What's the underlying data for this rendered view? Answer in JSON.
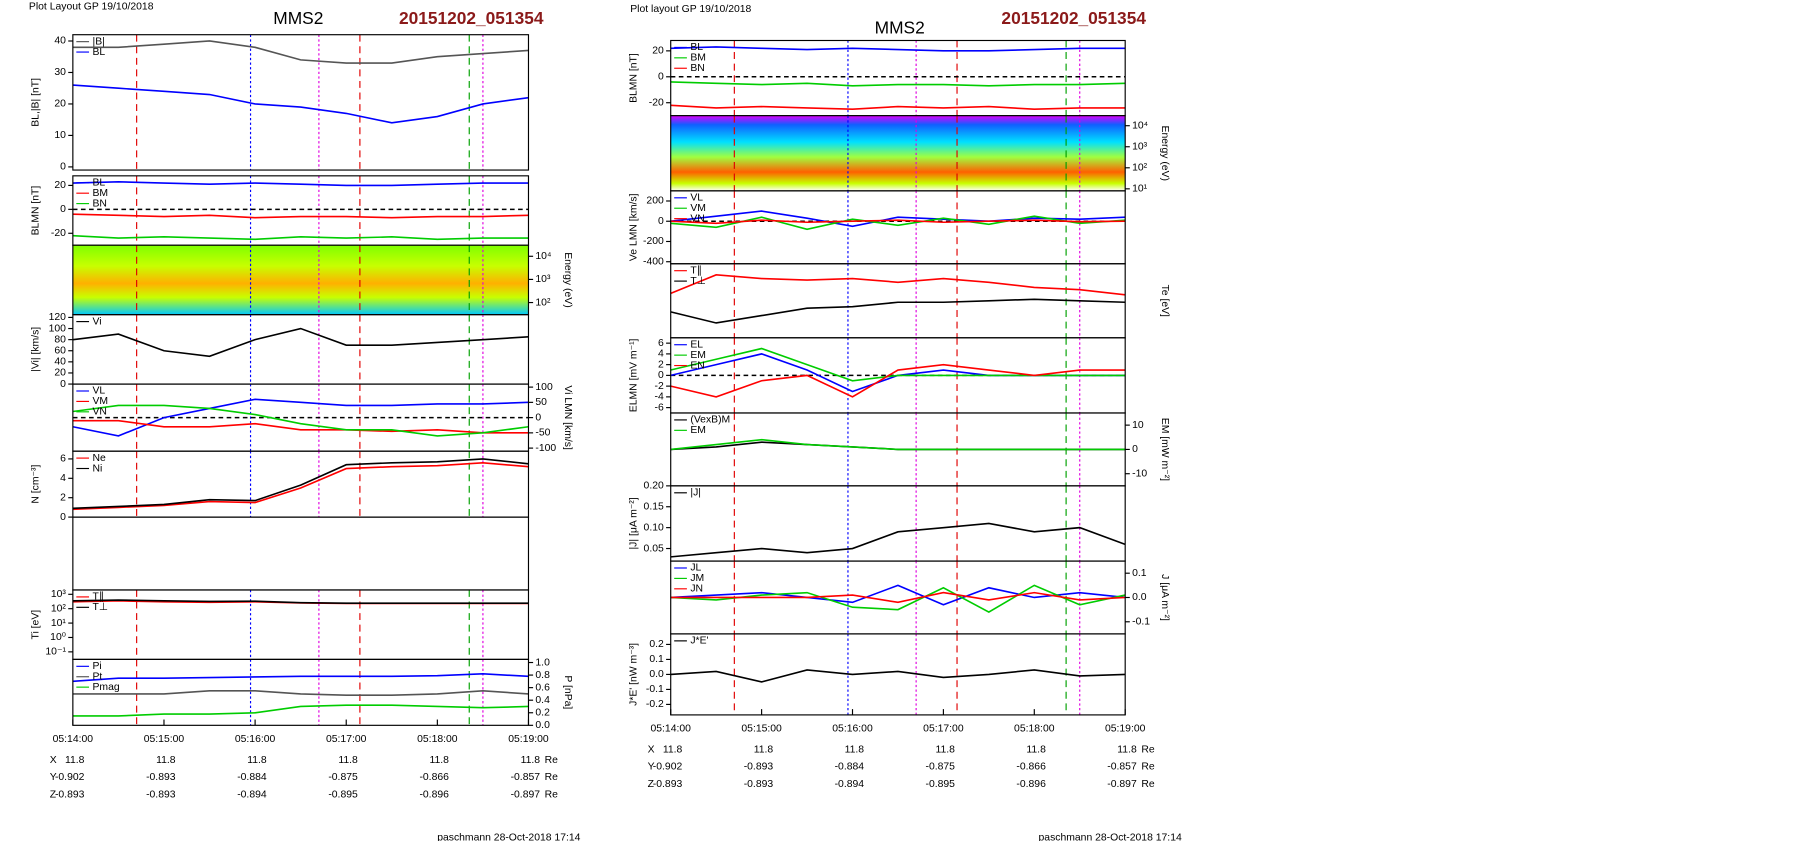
{
  "figures": [
    {
      "header": "Plot Layout GP 19/10/2018",
      "title": "MMS2",
      "id": "20151202_051354",
      "footer": "paschmann 28-Oct-2018 17:14",
      "xticks": [
        "05:14:00",
        "05:15:00",
        "05:16:00",
        "05:17:00",
        "05:18:00",
        "05:19:00"
      ],
      "ephemeris": [
        {
          "label": "X",
          "values": [
            11.8,
            11.8,
            11.8,
            11.8,
            11.8,
            11.8
          ],
          "unit": "Re"
        },
        {
          "label": "Y",
          "values": [
            -0.902,
            -0.893,
            -0.884,
            -0.875,
            -0.866,
            -0.857
          ],
          "unit": "Re"
        },
        {
          "label": "Z",
          "values": [
            -0.893,
            -0.893,
            -0.894,
            -0.895,
            -0.896,
            -0.897
          ],
          "unit": "Re"
        }
      ]
    },
    {
      "header": "Plot layout GP 19/10/2018",
      "title": "MMS2",
      "id": "20151202_051354",
      "footer": "paschmann 28-Oct-2018 17:14",
      "xticks": [
        "05:14:00",
        "05:15:00",
        "05:16:00",
        "05:17:00",
        "05:18:00",
        "05:19:00"
      ],
      "ephemeris": [
        {
          "label": "X",
          "values": [
            11.8,
            11.8,
            11.8,
            11.8,
            11.8,
            11.8
          ],
          "unit": "Re"
        },
        {
          "label": "Y",
          "values": [
            -0.902,
            -0.893,
            -0.884,
            -0.875,
            -0.866,
            -0.857
          ],
          "unit": "Re"
        },
        {
          "label": "Z",
          "values": [
            -0.893,
            -0.893,
            -0.894,
            -0.895,
            -0.896,
            -0.897
          ],
          "unit": "Re"
        }
      ]
    }
  ],
  "chart_data": [
    {
      "type": "line",
      "ylabel": "BL,|B| [nT]",
      "ylim": [
        -1,
        42
      ],
      "yticks": [
        0,
        10,
        20,
        30,
        40
      ],
      "series": [
        {
          "name": "|B|",
          "color": "#555555",
          "values": [
            38,
            38,
            39,
            40,
            38,
            34,
            33,
            33,
            35,
            36,
            37
          ]
        },
        {
          "name": "BL",
          "color": "#0000ff",
          "values": [
            26,
            25,
            24,
            23,
            20,
            19,
            17,
            14,
            16,
            20,
            22
          ]
        }
      ]
    },
    {
      "type": "line",
      "ylabel": "BLMN [nT]",
      "ylim": [
        -30,
        28
      ],
      "yticks": [
        -20,
        0,
        20
      ],
      "zero_line": true,
      "series": [
        {
          "name": "BL",
          "color": "#0000ff",
          "values": [
            22,
            23,
            22,
            21,
            22,
            21,
            20,
            20,
            21,
            22,
            22
          ]
        },
        {
          "name": "BM",
          "color": "#ff0000",
          "values": [
            -4,
            -5,
            -6,
            -5,
            -7,
            -6,
            -6,
            -7,
            -6,
            -6,
            -5
          ]
        },
        {
          "name": "BN",
          "color": "#00cc00",
          "values": [
            -22,
            -24,
            -23,
            -24,
            -25,
            -23,
            -24,
            -23,
            -25,
            -24,
            -24
          ]
        }
      ]
    },
    {
      "type": "spectrogram",
      "ylabel": "Energy (eV)",
      "log": true,
      "ylim": [
        30,
        30000
      ],
      "yticks": [
        {
          "value": 100,
          "label": "10²"
        },
        {
          "value": 1000,
          "label": "10³"
        },
        {
          "value": 10000,
          "label": "10⁴"
        }
      ]
    },
    {
      "type": "line",
      "ylabel": "|Vi| [km/s]",
      "ylim": [
        0,
        125
      ],
      "yticks": [
        0,
        20,
        40,
        60,
        80,
        100,
        120
      ],
      "series": [
        {
          "name": "Vi",
          "color": "#000000",
          "values": [
            80,
            90,
            60,
            50,
            80,
            100,
            70,
            70,
            75,
            80,
            85
          ]
        }
      ]
    },
    {
      "type": "line",
      "ylabel": "Vi LMN [km/s]",
      "ylim": [
        -110,
        110
      ],
      "yticks": [
        -100,
        -50,
        0,
        50,
        100
      ],
      "zero_line": true,
      "series": [
        {
          "name": "VL",
          "color": "#0000ff",
          "values": [
            -30,
            -60,
            0,
            30,
            60,
            50,
            40,
            40,
            45,
            45,
            50
          ]
        },
        {
          "name": "VM",
          "color": "#ff0000",
          "values": [
            -10,
            -10,
            -30,
            -30,
            -20,
            -40,
            -40,
            -45,
            -40,
            -50,
            -50
          ]
        },
        {
          "name": "VN",
          "color": "#00cc00",
          "values": [
            20,
            40,
            40,
            30,
            10,
            -20,
            -40,
            -40,
            -60,
            -50,
            -30
          ]
        }
      ]
    },
    {
      "type": "line",
      "ylabel": "N [cm⁻³]",
      "ylim": [
        0,
        6.8
      ],
      "yticks": [
        0,
        2,
        4,
        6
      ],
      "series": [
        {
          "name": "Ne",
          "color": "#ff0000",
          "values": [
            0.8,
            1,
            1.2,
            1.6,
            1.5,
            3,
            5,
            5.2,
            5.3,
            5.6,
            5.2
          ]
        },
        {
          "name": "Ni",
          "color": "#000000",
          "values": [
            0.9,
            1.1,
            1.3,
            1.8,
            1.7,
            3.3,
            5.4,
            5.6,
            5.7,
            6,
            5.5
          ]
        }
      ]
    },
    {
      "type": "line",
      "ylabel": "Ti [eV]",
      "log": true,
      "ylim": [
        0.03,
        2000
      ],
      "yticks": [
        {
          "value": 0.1,
          "label": "10⁻¹"
        },
        {
          "value": 1,
          "label": "10⁰"
        },
        {
          "value": 10,
          "label": "10¹"
        },
        {
          "value": 100,
          "label": "10²"
        },
        {
          "value": 1000,
          "label": "10³"
        }
      ],
      "series": [
        {
          "name": "T∥",
          "color": "#ff0000",
          "values": [
            300,
            350,
            300,
            280,
            300,
            250,
            230,
            230,
            230,
            230,
            230
          ]
        },
        {
          "name": "T⊥",
          "color": "#000000",
          "values": [
            350,
            400,
            350,
            320,
            330,
            260,
            240,
            240,
            240,
            240,
            240
          ]
        }
      ]
    },
    {
      "type": "line",
      "ylabel": "P [nPa]",
      "ylim": [
        0,
        1.05
      ],
      "yticks": [
        {
          "value": 0,
          "label": "0.0"
        },
        0.2,
        0.4,
        0.6,
        0.8,
        {
          "value": 1,
          "label": "1.0"
        }
      ],
      "series": [
        {
          "name": "Pi",
          "color": "#0000ff",
          "values": [
            0.7,
            0.75,
            0.75,
            0.76,
            0.77,
            0.78,
            0.78,
            0.78,
            0.79,
            0.82,
            0.78
          ]
        },
        {
          "name": "Pt",
          "color": "#555555",
          "values": [
            0.5,
            0.5,
            0.5,
            0.55,
            0.55,
            0.5,
            0.48,
            0.48,
            0.5,
            0.55,
            0.5
          ]
        },
        {
          "name": "Pmag",
          "color": "#00cc00",
          "values": [
            0.15,
            0.15,
            0.18,
            0.18,
            0.2,
            0.3,
            0.32,
            0.32,
            0.3,
            0.28,
            0.3
          ]
        }
      ]
    },
    {
      "type": "line",
      "ylabel": "BLMN [nT]",
      "ylim": [
        -30,
        28
      ],
      "yticks": [
        -20,
        0,
        20
      ],
      "zero_line": true,
      "series": [
        {
          "name": "BL",
          "color": "#0000ff",
          "values": [
            22,
            23,
            22,
            21,
            22,
            21,
            20,
            20,
            21,
            22,
            22
          ]
        },
        {
          "name": "BM",
          "color": "#00cc00",
          "values": [
            -4,
            -5,
            -6,
            -5,
            -7,
            -6,
            -6,
            -7,
            -6,
            -6,
            -5
          ]
        },
        {
          "name": "BN",
          "color": "#ff0000",
          "values": [
            -22,
            -24,
            -23,
            -24,
            -25,
            -23,
            -24,
            -23,
            -25,
            -24,
            -24
          ]
        }
      ]
    },
    {
      "type": "spectrogram",
      "ylabel": "Energy (eV)",
      "log": true,
      "ylim": [
        8,
        30000
      ],
      "yticks": [
        {
          "value": 10,
          "label": "10¹"
        },
        {
          "value": 100,
          "label": "10²"
        },
        {
          "value": 1000,
          "label": "10³"
        },
        {
          "value": 10000,
          "label": "10⁴"
        }
      ]
    },
    {
      "type": "line",
      "ylabel": "Ve LMN [km/s]",
      "ylim": [
        -420,
        300
      ],
      "yticks": [
        -400,
        -200,
        0,
        200
      ],
      "zero_line": true,
      "series": [
        {
          "name": "VL",
          "color": "#0000ff",
          "values": [
            0,
            50,
            100,
            30,
            -50,
            40,
            20,
            0,
            30,
            20,
            40
          ]
        },
        {
          "name": "VM",
          "color": "#00cc00",
          "values": [
            -20,
            -60,
            40,
            -80,
            20,
            -40,
            30,
            -30,
            50,
            -20,
            10
          ]
        },
        {
          "name": "VN",
          "color": "#ff0000",
          "values": [
            0,
            -20,
            10,
            -10,
            0,
            10,
            -10,
            0,
            10,
            -5,
            0
          ]
        }
      ]
    },
    {
      "type": "line",
      "ylabel": "Te [eV]",
      "ylim": [
        -30,
        70
      ],
      "yticks": [],
      "series": [
        {
          "name": "T∥",
          "color": "#ff0000",
          "values": [
            30,
            55,
            50,
            48,
            50,
            45,
            50,
            45,
            38,
            35,
            28
          ]
        },
        {
          "name": "T⊥",
          "color": "#000000",
          "values": [
            5,
            -10,
            0,
            10,
            12,
            18,
            18,
            20,
            22,
            20,
            18
          ]
        }
      ]
    },
    {
      "type": "line",
      "ylabel": "ELMN [mV m⁻¹]",
      "ylim": [
        -7,
        7
      ],
      "yticks": [
        -6,
        -4,
        -2,
        0,
        2,
        4,
        6
      ],
      "zero_line": true,
      "series": [
        {
          "name": "EL",
          "color": "#0000ff",
          "values": [
            0,
            2,
            4,
            1,
            -3,
            0,
            1,
            0,
            0,
            0,
            0
          ]
        },
        {
          "name": "EM",
          "color": "#00cc00",
          "values": [
            1,
            3,
            5,
            2,
            -1,
            0,
            0,
            0,
            0,
            0,
            0
          ]
        },
        {
          "name": "EN",
          "color": "#ff0000",
          "values": [
            -2,
            -4,
            -1,
            0,
            -4,
            1,
            2,
            1,
            0,
            1,
            1
          ]
        }
      ]
    },
    {
      "type": "line",
      "ylabel": "EM [mW m⁻²]",
      "ylim": [
        -15,
        15
      ],
      "yticks": [
        -10,
        0,
        10
      ],
      "series": [
        {
          "name": "(VexB)M",
          "color": "#000000",
          "values": [
            0,
            1,
            3,
            2,
            1,
            0,
            0,
            0,
            0,
            0,
            0
          ]
        },
        {
          "name": "EM",
          "color": "#00cc00",
          "values": [
            0,
            2,
            4,
            2,
            1,
            0,
            0,
            0,
            0,
            0,
            0
          ]
        }
      ]
    },
    {
      "type": "line",
      "ylabel": "|J| [μA m⁻²]",
      "ylim": [
        0.02,
        0.2
      ],
      "yticks": [
        0.05,
        {
          "value": 0.1,
          "label": "0.10"
        },
        0.15,
        {
          "value": 0.2,
          "label": "0.20"
        }
      ],
      "series": [
        {
          "name": "|J|",
          "color": "#000000",
          "values": [
            0.03,
            0.04,
            0.05,
            0.04,
            0.05,
            0.09,
            0.1,
            0.11,
            0.09,
            0.1,
            0.06
          ]
        }
      ]
    },
    {
      "type": "line",
      "ylabel": "J [μA m⁻²]",
      "ylim": [
        -0.15,
        0.15
      ],
      "yticks": [
        -0.1,
        {
          "value": 0,
          "label": "0.0"
        },
        0.1
      ],
      "series": [
        {
          "name": "JL",
          "color": "#0000ff",
          "values": [
            0,
            0.01,
            0.02,
            0,
            -0.02,
            0.05,
            -0.03,
            0.04,
            0,
            0.02,
            0
          ]
        },
        {
          "name": "JM",
          "color": "#00cc00",
          "values": [
            0,
            -0.01,
            0.01,
            0.02,
            -0.04,
            -0.05,
            0.04,
            -0.06,
            0.05,
            -0.03,
            0.01
          ]
        },
        {
          "name": "JN",
          "color": "#ff0000",
          "values": [
            0,
            0,
            0,
            0,
            0.01,
            -0.02,
            0.02,
            -0.01,
            0.02,
            -0.01,
            0
          ]
        }
      ]
    },
    {
      "type": "line",
      "ylabel": "J*E' [nW m⁻³]",
      "ylim": [
        -0.27,
        0.27
      ],
      "yticks": [
        -0.2,
        -0.1,
        {
          "value": 0,
          "label": "0.0"
        },
        0.1,
        0.2
      ],
      "series": [
        {
          "name": "J*E'",
          "color": "#000000",
          "values": [
            0,
            0.02,
            -0.05,
            0.03,
            0,
            0.02,
            -0.02,
            0,
            0.03,
            -0.01,
            0
          ]
        }
      ]
    }
  ]
}
